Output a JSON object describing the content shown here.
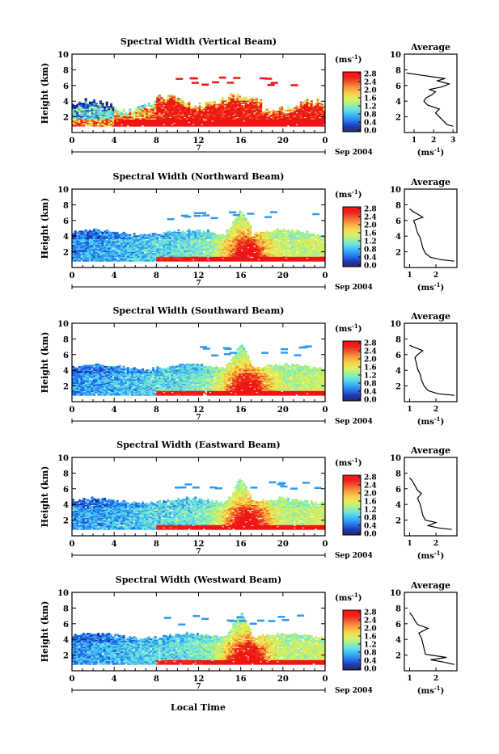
{
  "figure": {
    "date_label": "Sep 2004",
    "day_label": "7",
    "xlabel": "Local Time",
    "ylabel": "Height (km)",
    "unit_label": "(ms",
    "unit_exp": "-1",
    "unit_close": ")",
    "avg_title": "Average",
    "colors": {
      "scale": [
        "#202058",
        "#1a2ca8",
        "#1d5fe0",
        "#2e9bf0",
        "#55d2f2",
        "#7ee8c8",
        "#a8f08c",
        "#d6f25a",
        "#f6e24a",
        "#f6b43c",
        "#f0782e",
        "#e8361e",
        "#f01414"
      ],
      "bar_stops": [
        "#2a2a5a",
        "#1e3ab8",
        "#2a78ec",
        "#3cb4f4",
        "#66e0e4",
        "#a0f09a",
        "#e0f060",
        "#f8d050",
        "#f8a040",
        "#f06030",
        "#ee2020",
        "#ff1010"
      ]
    }
  },
  "chart_data": [
    {
      "type": "heatmap",
      "title": "Spectral Width (Vertical Beam)",
      "x_ticks": [
        "0",
        "4",
        "8",
        "12",
        "16",
        "20",
        "0"
      ],
      "y_ticks": [
        "2",
        "4",
        "6",
        "8",
        "10"
      ],
      "ylim": [
        0,
        10
      ],
      "xlim": [
        0,
        24
      ],
      "colorbar_ticks": [
        "2.8",
        "2.4",
        "2.0",
        "1.6",
        "1.2",
        "0.8",
        "0.4",
        "0.0"
      ],
      "clim": [
        0.0,
        2.8
      ],
      "pattern": "vertical",
      "average": {
        "x_ticks": [
          "1",
          "2",
          "3"
        ],
        "xlim": [
          0.5,
          3.2
        ],
        "y_ticks": [
          "2",
          "4",
          "6",
          "8",
          "10"
        ],
        "ylim": [
          0,
          10
        ],
        "profile": [
          [
            3.0,
            0.8
          ],
          [
            2.7,
            1.0
          ],
          [
            2.5,
            1.5
          ],
          [
            2.3,
            2.0
          ],
          [
            2.1,
            2.5
          ],
          [
            2.3,
            3.0
          ],
          [
            1.7,
            3.5
          ],
          [
            1.5,
            4.0
          ],
          [
            1.6,
            4.4
          ],
          [
            1.9,
            4.8
          ],
          [
            2.1,
            5.2
          ],
          [
            1.8,
            5.5
          ],
          [
            2.4,
            5.8
          ],
          [
            2.8,
            6.2
          ],
          [
            2.2,
            6.6
          ],
          [
            2.6,
            6.9
          ],
          [
            1.4,
            7.3
          ],
          [
            0.6,
            7.6
          ]
        ]
      }
    },
    {
      "type": "heatmap",
      "title": "Spectral Width (Northward Beam)",
      "x_ticks": [
        "0",
        "4",
        "8",
        "12",
        "16",
        "20",
        "0"
      ],
      "y_ticks": [
        "2",
        "4",
        "6",
        "8",
        "10"
      ],
      "ylim": [
        0,
        10
      ],
      "xlim": [
        0,
        24
      ],
      "colorbar_ticks": [
        "2.8",
        "2.4",
        "2.0",
        "1.6",
        "1.2",
        "0.8",
        "0.4",
        "0.0"
      ],
      "clim": [
        0.0,
        2.8
      ],
      "pattern": "tilted",
      "average": {
        "x_ticks": [
          "1",
          "2"
        ],
        "xlim": [
          0.8,
          2.8
        ],
        "y_ticks": [
          "2",
          "4",
          "6",
          "8",
          "10"
        ],
        "ylim": [
          0,
          10
        ],
        "profile": [
          [
            2.7,
            0.8
          ],
          [
            2.2,
            1.0
          ],
          [
            1.8,
            1.3
          ],
          [
            1.6,
            1.8
          ],
          [
            1.5,
            2.5
          ],
          [
            1.45,
            3.2
          ],
          [
            1.4,
            3.8
          ],
          [
            1.3,
            4.4
          ],
          [
            1.25,
            5.0
          ],
          [
            1.2,
            5.6
          ],
          [
            1.15,
            6.0
          ],
          [
            1.5,
            6.4
          ],
          [
            1.3,
            6.8
          ],
          [
            1.1,
            7.2
          ],
          [
            1.0,
            7.5
          ]
        ]
      }
    },
    {
      "type": "heatmap",
      "title": "Spectral Width (Southward Beam)",
      "x_ticks": [
        "0",
        "4",
        "8",
        "12",
        "16",
        "20",
        "0"
      ],
      "y_ticks": [
        "2",
        "4",
        "6",
        "8",
        "10"
      ],
      "ylim": [
        0,
        10
      ],
      "xlim": [
        0,
        24
      ],
      "colorbar_ticks": [
        "2.8",
        "2.4",
        "2.0",
        "1.6",
        "1.2",
        "0.8",
        "0.4",
        "0.0"
      ],
      "clim": [
        0.0,
        2.8
      ],
      "pattern": "tilted",
      "average": {
        "x_ticks": [
          "1",
          "2"
        ],
        "xlim": [
          0.8,
          2.8
        ],
        "y_ticks": [
          "2",
          "4",
          "6",
          "8",
          "10"
        ],
        "ylim": [
          0,
          10
        ],
        "profile": [
          [
            2.7,
            0.8
          ],
          [
            2.1,
            1.0
          ],
          [
            1.7,
            1.4
          ],
          [
            1.55,
            2.0
          ],
          [
            1.45,
            2.8
          ],
          [
            1.4,
            3.5
          ],
          [
            1.3,
            4.2
          ],
          [
            1.25,
            5.0
          ],
          [
            1.2,
            5.6
          ],
          [
            1.3,
            6.0
          ],
          [
            1.5,
            6.5
          ],
          [
            1.2,
            6.9
          ],
          [
            1.0,
            7.2
          ]
        ]
      }
    },
    {
      "type": "heatmap",
      "title": "Spectral Width (Eastward Beam)",
      "x_ticks": [
        "0",
        "4",
        "8",
        "12",
        "16",
        "20",
        "0"
      ],
      "y_ticks": [
        "2",
        "4",
        "6",
        "8",
        "10"
      ],
      "ylim": [
        0,
        10
      ],
      "xlim": [
        0,
        24
      ],
      "colorbar_ticks": [
        "2.8",
        "2.4",
        "2.0",
        "1.6",
        "1.2",
        "0.8",
        "0.4",
        "0.0"
      ],
      "clim": [
        0.0,
        2.8
      ],
      "pattern": "tilted",
      "average": {
        "x_ticks": [
          "1",
          "2"
        ],
        "xlim": [
          0.8,
          2.8
        ],
        "y_ticks": [
          "2",
          "4",
          "6",
          "8",
          "10"
        ],
        "ylim": [
          0,
          10
        ],
        "profile": [
          [
            2.6,
            0.8
          ],
          [
            2.1,
            1.0
          ],
          [
            1.7,
            1.3
          ],
          [
            2.0,
            1.7
          ],
          [
            1.6,
            2.0
          ],
          [
            1.5,
            2.6
          ],
          [
            1.45,
            3.4
          ],
          [
            1.4,
            4.0
          ],
          [
            1.3,
            4.8
          ],
          [
            1.45,
            5.4
          ],
          [
            1.3,
            5.8
          ],
          [
            1.2,
            6.4
          ],
          [
            1.1,
            7.0
          ],
          [
            1.0,
            7.4
          ]
        ]
      }
    },
    {
      "type": "heatmap",
      "title": "Spectral Width (Westward Beam)",
      "x_ticks": [
        "0",
        "4",
        "8",
        "12",
        "16",
        "20",
        "0"
      ],
      "y_ticks": [
        "2",
        "4",
        "6",
        "8",
        "10"
      ],
      "ylim": [
        0,
        10
      ],
      "xlim": [
        0,
        24
      ],
      "colorbar_ticks": [
        "2.8",
        "2.4",
        "2.0",
        "1.6",
        "1.2",
        "0.8",
        "0.4",
        "0.0"
      ],
      "clim": [
        0.0,
        2.8
      ],
      "pattern": "tilted",
      "average": {
        "x_ticks": [
          "1",
          "2"
        ],
        "xlim": [
          0.8,
          2.8
        ],
        "y_ticks": [
          "2",
          "4",
          "6",
          "8",
          "10"
        ],
        "ylim": [
          0,
          10
        ],
        "profile": [
          [
            2.7,
            0.8
          ],
          [
            2.3,
            1.1
          ],
          [
            1.8,
            1.4
          ],
          [
            2.4,
            1.7
          ],
          [
            1.6,
            2.1
          ],
          [
            1.55,
            2.8
          ],
          [
            1.5,
            3.5
          ],
          [
            1.45,
            4.2
          ],
          [
            1.35,
            4.8
          ],
          [
            1.7,
            5.4
          ],
          [
            1.3,
            5.9
          ],
          [
            1.2,
            6.4
          ],
          [
            1.1,
            7.0
          ],
          [
            1.0,
            7.4
          ]
        ]
      }
    }
  ]
}
